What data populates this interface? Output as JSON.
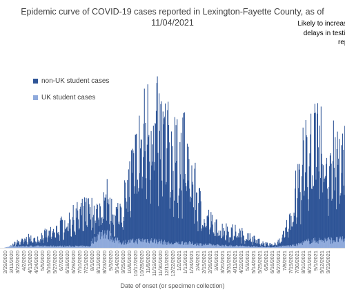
{
  "chart_data": {
    "type": "bar",
    "stacked": true,
    "title_line1": "Epidemic curve of COVID-19 cases reported in Lexington-Fayette County, as of",
    "title_line2": "11/04/2021",
    "annotation_lines": [
      "Likely to increase",
      "delays in testi",
      "repo"
    ],
    "xlabel": "Date of onset (or specimen collection)",
    "ylabel": "",
    "ylim": [
      0,
      290
    ],
    "x_start": "2/29/2020",
    "x_end": "9/23/2021",
    "tick_labels": [
      "2/29/2020",
      "3/11/2020",
      "3/22/2020",
      "4/2/2020",
      "4/13/2020",
      "4/24/2020",
      "5/5/2020",
      "5/16/2020",
      "5/27/2020",
      "6/7/2020",
      "6/18/2020",
      "6/29/2020",
      "7/10/2020",
      "7/21/2020",
      "8/1/2020",
      "8/12/2020",
      "8/23/2020",
      "9/3/2020",
      "9/14/2020",
      "9/25/2020",
      "10/6/2020",
      "10/17/2020",
      "10/28/2020",
      "11/8/2020",
      "11/19/2020",
      "11/30/2020",
      "12/11/2020",
      "12/22/2020",
      "1/2/2021",
      "1/13/2021",
      "1/24/2021",
      "2/4/2021",
      "2/15/2021",
      "2/26/2021",
      "3/9/2021",
      "3/20/2021",
      "3/31/2021",
      "4/11/2021",
      "4/22/2021",
      "5/3/2021",
      "5/14/2021",
      "5/25/2021",
      "6/5/2021",
      "6/16/2021",
      "6/27/2021",
      "7/8/2021",
      "7/19/2021",
      "7/30/2021",
      "8/10/2021",
      "8/21/2021",
      "9/1/2021",
      "9/12/2021",
      "9/23/2021"
    ],
    "series": [
      {
        "name": "non-UK student cases",
        "color": "#2f5597"
      },
      {
        "name": "UK student cases",
        "color": "#8faadc"
      }
    ],
    "envelope_points_total": [
      [
        "2/29/2020",
        0
      ],
      [
        "3/11/2020",
        2
      ],
      [
        "3/22/2020",
        8
      ],
      [
        "4/2/2020",
        10
      ],
      [
        "4/13/2020",
        14
      ],
      [
        "4/24/2020",
        12
      ],
      [
        "5/5/2020",
        18
      ],
      [
        "5/16/2020",
        20
      ],
      [
        "5/27/2020",
        22
      ],
      [
        "6/7/2020",
        30
      ],
      [
        "6/18/2020",
        38
      ],
      [
        "6/29/2020",
        42
      ],
      [
        "7/10/2020",
        48
      ],
      [
        "7/21/2020",
        52
      ],
      [
        "8/1/2020",
        55
      ],
      [
        "8/12/2020",
        50
      ],
      [
        "8/23/2020",
        60
      ],
      [
        "9/3/2020",
        52
      ],
      [
        "9/14/2020",
        48
      ],
      [
        "9/25/2020",
        60
      ],
      [
        "10/6/2020",
        90
      ],
      [
        "10/17/2020",
        120
      ],
      [
        "10/28/2020",
        150
      ],
      [
        "11/8/2020",
        175
      ],
      [
        "11/19/2020",
        190
      ],
      [
        "11/30/2020",
        170
      ],
      [
        "12/11/2020",
        160
      ],
      [
        "12/22/2020",
        135
      ],
      [
        "1/2/2021",
        130
      ],
      [
        "1/13/2021",
        140
      ],
      [
        "1/24/2021",
        110
      ],
      [
        "2/4/2021",
        80
      ],
      [
        "2/15/2021",
        50
      ],
      [
        "2/26/2021",
        42
      ],
      [
        "3/9/2021",
        30
      ],
      [
        "3/20/2021",
        28
      ],
      [
        "3/31/2021",
        26
      ],
      [
        "4/11/2021",
        24
      ],
      [
        "4/22/2021",
        22
      ],
      [
        "5/3/2021",
        18
      ],
      [
        "5/14/2021",
        14
      ],
      [
        "5/25/2021",
        10
      ],
      [
        "6/5/2021",
        6
      ],
      [
        "6/16/2021",
        5
      ],
      [
        "6/27/2021",
        6
      ],
      [
        "7/8/2021",
        18
      ],
      [
        "7/19/2021",
        40
      ],
      [
        "7/30/2021",
        80
      ],
      [
        "8/10/2021",
        120
      ],
      [
        "8/21/2021",
        140
      ],
      [
        "9/1/2021",
        150
      ],
      [
        "9/12/2021",
        145
      ],
      [
        "9/23/2021",
        130
      ]
    ],
    "envelope_points_uk": [
      [
        "8/1/2020",
        8
      ],
      [
        "8/12/2020",
        16
      ],
      [
        "8/23/2020",
        25
      ],
      [
        "9/3/2020",
        18
      ],
      [
        "9/14/2020",
        12
      ],
      [
        "9/25/2020",
        8
      ],
      [
        "10/17/2020",
        10
      ],
      [
        "11/8/2020",
        12
      ],
      [
        "11/30/2020",
        10
      ],
      [
        "12/22/2020",
        6
      ],
      [
        "1/13/2021",
        8
      ],
      [
        "2/4/2021",
        6
      ],
      [
        "3/9/2021",
        4
      ],
      [
        "4/11/2021",
        3
      ],
      [
        "5/14/2021",
        2
      ],
      [
        "6/16/2021",
        1
      ],
      [
        "7/30/2021",
        4
      ],
      [
        "8/21/2021",
        10
      ],
      [
        "9/23/2021",
        12
      ]
    ],
    "peak_annotations": [
      [
        "8/30/2020",
        100
      ],
      [
        "11/24/2020",
        180
      ],
      [
        "12/1/2020",
        170
      ],
      [
        "12/28/2020",
        190
      ],
      [
        "8/26/2021",
        195
      ]
    ],
    "grid": false,
    "legend_placement": "top-left"
  }
}
